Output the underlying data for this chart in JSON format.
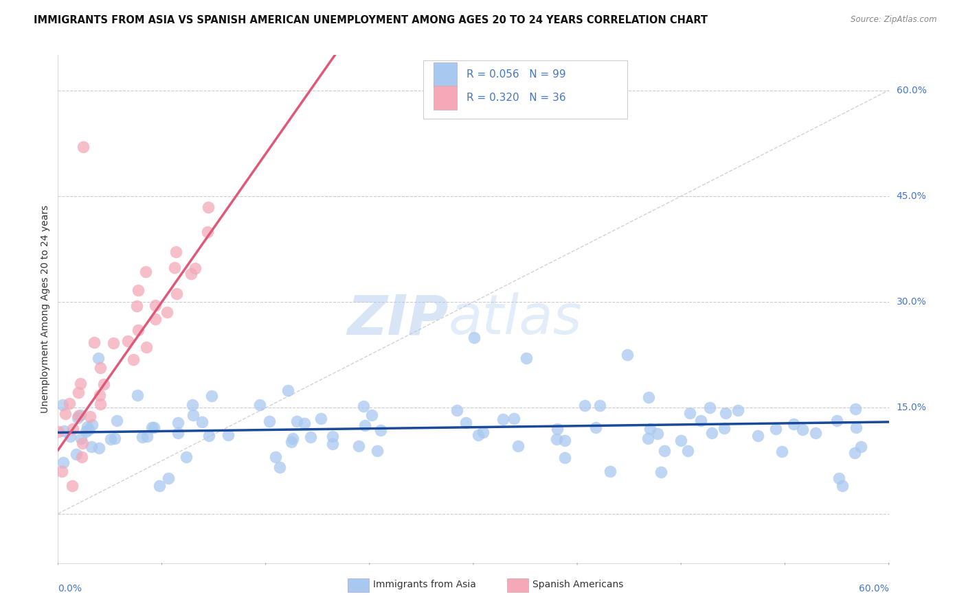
{
  "title": "IMMIGRANTS FROM ASIA VS SPANISH AMERICAN UNEMPLOYMENT AMONG AGES 20 TO 24 YEARS CORRELATION CHART",
  "source": "Source: ZipAtlas.com",
  "ylabel": "Unemployment Among Ages 20 to 24 years",
  "xlim": [
    0.0,
    0.6
  ],
  "ylim": [
    -0.07,
    0.65
  ],
  "legend_r1": "R = 0.056",
  "legend_n1": "N = 99",
  "legend_r2": "R = 0.320",
  "legend_n2": "N = 36",
  "color_blue": "#A8C8F0",
  "color_blue_line": "#1A4A9A",
  "color_pink": "#F4A8B8",
  "color_pink_line": "#E05878",
  "color_dashed": "#C8C8C8",
  "watermark_zip": "ZIP",
  "watermark_atlas": "atlas",
  "background_color": "#FFFFFF",
  "grid_color": "#CCCCCC",
  "right_label_color": "#4477CC",
  "title_color": "#111111",
  "source_color": "#888888"
}
